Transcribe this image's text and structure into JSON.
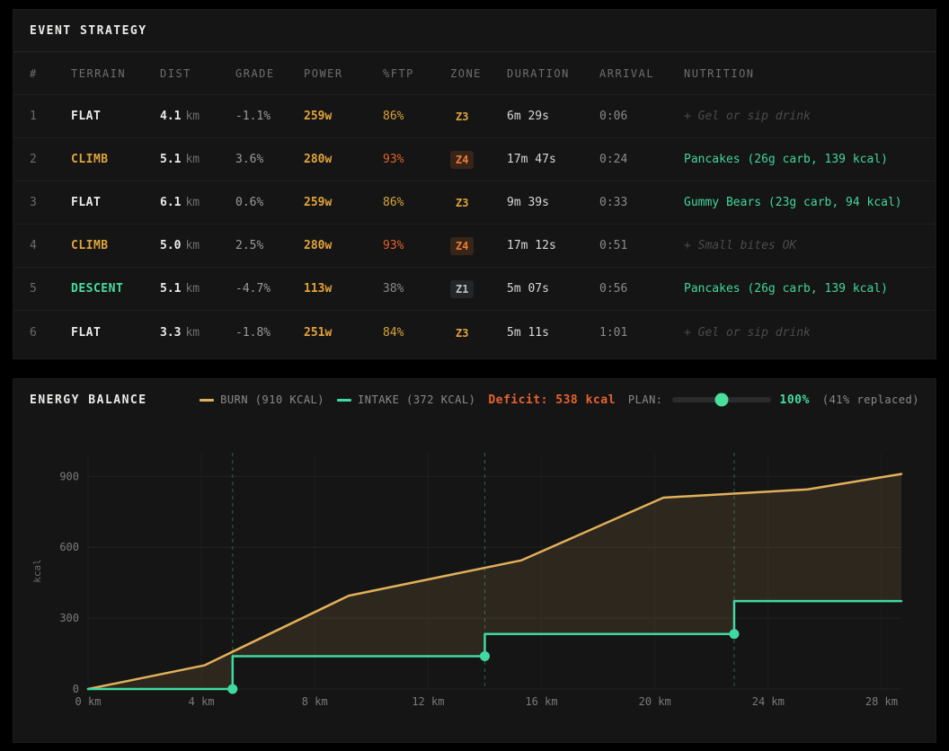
{
  "strategy_panel": {
    "title": "EVENT STRATEGY",
    "columns": [
      "#",
      "TERRAIN",
      "DIST",
      "GRADE",
      "POWER",
      "%FTP",
      "ZONE",
      "DURATION",
      "ARRIVAL",
      "NUTRITION"
    ],
    "dist_unit": "km",
    "rows": [
      {
        "num": "1",
        "terrain": "FLAT",
        "terrain_type": "flat",
        "dist": "4.1",
        "grade": "-1.1%",
        "power": "259w",
        "ftp": "86%",
        "zone": "Z3",
        "duration": "6m 29s",
        "arrival": "0:06",
        "nutrition": "+ Gel or sip drink",
        "nutrition_type": "hint"
      },
      {
        "num": "2",
        "terrain": "CLIMB",
        "terrain_type": "climb",
        "dist": "5.1",
        "grade": "3.6%",
        "power": "280w",
        "ftp": "93%",
        "zone": "Z4",
        "duration": "17m 47s",
        "arrival": "0:24",
        "nutrition": "Pancakes (26g carb, 139 kcal)",
        "nutrition_type": "food"
      },
      {
        "num": "3",
        "terrain": "FLAT",
        "terrain_type": "flat",
        "dist": "6.1",
        "grade": "0.6%",
        "power": "259w",
        "ftp": "86%",
        "zone": "Z3",
        "duration": "9m 39s",
        "arrival": "0:33",
        "nutrition": "Gummy Bears (23g carb, 94 kcal)",
        "nutrition_type": "food"
      },
      {
        "num": "4",
        "terrain": "CLIMB",
        "terrain_type": "climb",
        "dist": "5.0",
        "grade": "2.5%",
        "power": "280w",
        "ftp": "93%",
        "zone": "Z4",
        "duration": "17m 12s",
        "arrival": "0:51",
        "nutrition": "+ Small bites OK",
        "nutrition_type": "hint"
      },
      {
        "num": "5",
        "terrain": "DESCENT",
        "terrain_type": "descent",
        "dist": "5.1",
        "grade": "-4.7%",
        "power": "113w",
        "ftp": "38%",
        "zone": "Z1",
        "duration": "5m 07s",
        "arrival": "0:56",
        "nutrition": "Pancakes (26g carb, 139 kcal)",
        "nutrition_type": "food"
      },
      {
        "num": "6",
        "terrain": "FLAT",
        "terrain_type": "flat",
        "dist": "3.3",
        "grade": "-1.8%",
        "power": "251w",
        "ftp": "84%",
        "zone": "Z3",
        "duration": "5m 11s",
        "arrival": "1:01",
        "nutrition": "+ Gel or sip drink",
        "nutrition_type": "hint"
      }
    ]
  },
  "energy_panel": {
    "title": "ENERGY BALANCE",
    "legend": {
      "burn_label": "BURN (910 KCAL)",
      "intake_label": "INTAKE (372 KCAL)",
      "deficit_label": "Deficit: 538 kcal",
      "plan_label": "PLAN:",
      "plan_value": "100%",
      "plan_slider_percent": 50,
      "replaced_label": "(41% replaced)"
    }
  },
  "chart_data": {
    "type": "line",
    "title": "ENERGY BALANCE",
    "xlabel": "",
    "ylabel": "kcal",
    "x_unit": "km",
    "xlim": [
      0,
      28.7
    ],
    "ylim": [
      0,
      1000
    ],
    "x_ticks": [
      0,
      4,
      8,
      12,
      16,
      20,
      24,
      28
    ],
    "y_ticks": [
      0,
      300,
      600,
      900
    ],
    "grid": true,
    "legend_position": "top",
    "series": [
      {
        "name": "BURN",
        "color": "#e2b05a",
        "step": false,
        "points": [
          [
            0,
            0
          ],
          [
            4.1,
            100
          ],
          [
            9.2,
            395
          ],
          [
            15.3,
            545
          ],
          [
            20.3,
            810
          ],
          [
            25.4,
            845
          ],
          [
            28.7,
            910
          ]
        ]
      },
      {
        "name": "INTAKE",
        "color": "#3fd9a1",
        "step": true,
        "points": [
          [
            0,
            0
          ],
          [
            5.1,
            0
          ],
          [
            5.1,
            139
          ],
          [
            14.0,
            139
          ],
          [
            14.0,
            233
          ],
          [
            22.8,
            233
          ],
          [
            22.8,
            372
          ],
          [
            28.7,
            372
          ]
        ]
      }
    ],
    "deficit_fill": "rgba(226,176,90,0.12)",
    "eat_markers": [
      [
        5.1,
        0
      ],
      [
        14.0,
        139
      ],
      [
        22.8,
        233
      ]
    ],
    "event_lines_x": [
      5.1,
      14.0,
      22.8
    ],
    "event_line_color": "rgba(71,219,160,0.40)"
  },
  "colors": {
    "burn": "#e2b05a",
    "intake": "#3fd9a1",
    "deficit": "#e8622d",
    "climb": "#dfa43c",
    "descent": "#47dba0",
    "zone_z4": "#f07a30"
  }
}
